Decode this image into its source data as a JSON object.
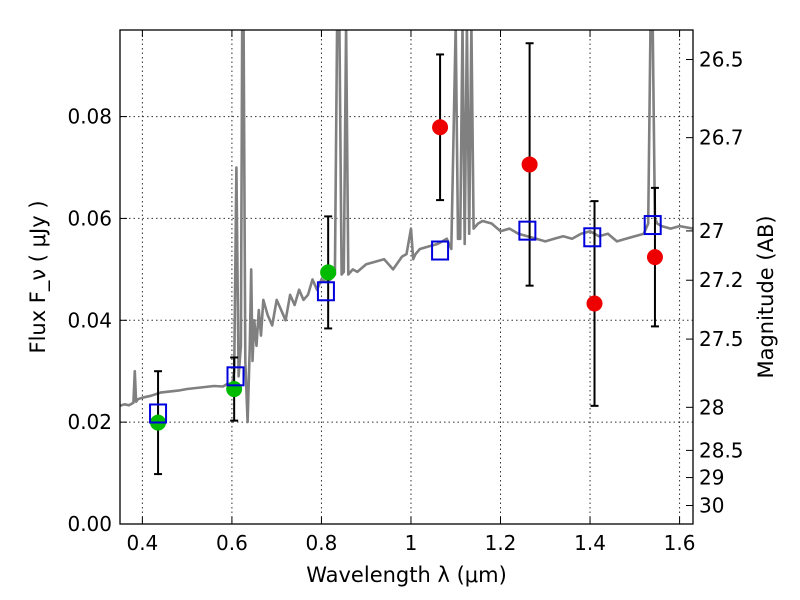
{
  "chart_data": {
    "type": "scatter",
    "xlabel": "Wavelength  λ (μm)",
    "ylabel": "Flux  F_ν  ( μJy )",
    "y2label": "Magnitude (AB)",
    "xlim": [
      0.35,
      1.63
    ],
    "ylim": [
      0.0,
      0.097
    ],
    "grid": true,
    "x_ticks": [
      0.4,
      0.6,
      0.8,
      1.0,
      1.2,
      1.4,
      1.6
    ],
    "x_tick_labels": [
      "0.4",
      "0.6",
      "0.8",
      "1",
      "1.2",
      "1.4",
      "1.6"
    ],
    "y_ticks": [
      0.0,
      0.02,
      0.04,
      0.06,
      0.08
    ],
    "y_tick_labels": [
      "0.00",
      "0.02",
      "0.04",
      "0.06",
      "0.08"
    ],
    "mag_ticks": [
      26.5,
      26.7,
      27.0,
      27.2,
      27.5,
      28.0,
      28.5,
      29.0,
      30.0
    ],
    "mag_tick_labels": [
      "26.5",
      "26.7",
      "27",
      "27.2",
      "27.5",
      "28",
      "28.5",
      "29",
      "30"
    ],
    "colors": {
      "spectrum": "#808080",
      "green_points": "#00bb00",
      "red_points": "#ee0000",
      "model_boxes": "#0000dd",
      "errorbars": "#000000"
    },
    "series": [
      {
        "kind": "line",
        "x": [
          0.35,
          0.36,
          0.37,
          0.38,
          0.383,
          0.386,
          0.39,
          0.4,
          0.42,
          0.44,
          0.46,
          0.48,
          0.5,
          0.52,
          0.54,
          0.56,
          0.58,
          0.59,
          0.6,
          0.605,
          0.61,
          0.615,
          0.62,
          0.623,
          0.626,
          0.63,
          0.635,
          0.64,
          0.643,
          0.646,
          0.65,
          0.655,
          0.66,
          0.665,
          0.67,
          0.68,
          0.69,
          0.7,
          0.71,
          0.72,
          0.73,
          0.74,
          0.75,
          0.76,
          0.77,
          0.78,
          0.79,
          0.8,
          0.81,
          0.82,
          0.83,
          0.835,
          0.84,
          0.845,
          0.85,
          0.855,
          0.86,
          0.87,
          0.88,
          0.9,
          0.92,
          0.94,
          0.96,
          0.98,
          0.99,
          1.0,
          1.005,
          1.01,
          1.02,
          1.04,
          1.06,
          1.08,
          1.09,
          1.1,
          1.105,
          1.11,
          1.115,
          1.12,
          1.125,
          1.13,
          1.135,
          1.14,
          1.15,
          1.16,
          1.18,
          1.2,
          1.22,
          1.24,
          1.26,
          1.28,
          1.3,
          1.32,
          1.34,
          1.36,
          1.38,
          1.4,
          1.42,
          1.44,
          1.46,
          1.48,
          1.5,
          1.52,
          1.53,
          1.535,
          1.54,
          1.545,
          1.55,
          1.56,
          1.58,
          1.6,
          1.63
        ],
        "y": [
          0.0232,
          0.0235,
          0.0233,
          0.0238,
          0.03,
          0.024,
          0.0245,
          0.0248,
          0.0252,
          0.0258,
          0.026,
          0.0262,
          0.0265,
          0.0267,
          0.0269,
          0.0271,
          0.027,
          0.0275,
          0.0272,
          0.03,
          0.07,
          0.029,
          0.035,
          0.098,
          0.098,
          0.032,
          0.02,
          0.035,
          0.05,
          0.032,
          0.04,
          0.035,
          0.042,
          0.037,
          0.044,
          0.041,
          0.039,
          0.044,
          0.042,
          0.04,
          0.045,
          0.043,
          0.046,
          0.044,
          0.045,
          0.048,
          0.046,
          0.048,
          0.0475,
          0.048,
          0.049,
          0.098,
          0.098,
          0.049,
          0.0495,
          0.098,
          0.049,
          0.05,
          0.0495,
          0.051,
          0.0515,
          0.052,
          0.05,
          0.0525,
          0.053,
          0.058,
          0.052,
          0.053,
          0.054,
          0.0545,
          0.055,
          0.056,
          0.054,
          0.098,
          0.056,
          0.056,
          0.098,
          0.055,
          0.098,
          0.057,
          0.098,
          0.058,
          0.059,
          0.0595,
          0.059,
          0.0575,
          0.058,
          0.057,
          0.0565,
          0.056,
          0.0555,
          0.056,
          0.0565,
          0.056,
          0.057,
          0.0575,
          0.0565,
          0.057,
          0.0555,
          0.056,
          0.0565,
          0.057,
          0.059,
          0.098,
          0.098,
          0.06,
          0.059,
          0.0585,
          0.058,
          0.0585,
          0.058
        ]
      },
      {
        "kind": "points",
        "x": [
          0.435,
          0.605,
          0.815
        ],
        "y": [
          0.0199,
          0.0265,
          0.0494
        ],
        "yerr": [
          0.0101,
          0.0062,
          0.011
        ]
      },
      {
        "kind": "points",
        "x": [
          1.065,
          1.265,
          1.41,
          1.545
        ],
        "y": [
          0.0779,
          0.0706,
          0.0433,
          0.0524
        ],
        "yerr": [
          0.0143,
          0.0238,
          0.0201,
          0.0136
        ]
      },
      {
        "kind": "boxes",
        "x": [
          0.435,
          0.608,
          0.81,
          1.065,
          1.26,
          1.405,
          1.54
        ],
        "y": [
          0.0217,
          0.029,
          0.0457,
          0.0537,
          0.0576,
          0.0563,
          0.0587
        ]
      }
    ]
  }
}
